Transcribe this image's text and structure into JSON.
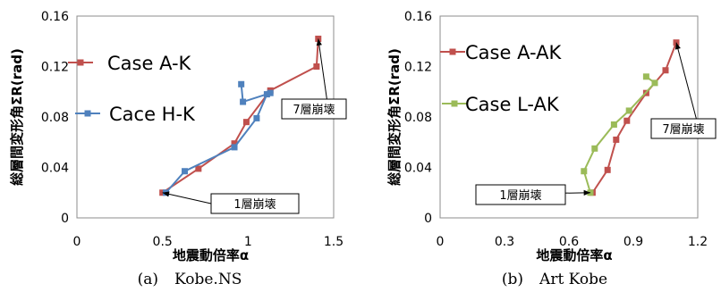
{
  "chart_data": [
    {
      "type": "line",
      "caption_label": "(a)",
      "caption_text": "Kobe.NS",
      "xlabel": "地震動倍率α",
      "ylabel": "総層間変形角ΣR(rad)",
      "xlim": [
        0,
        1.5
      ],
      "ylim": [
        0,
        0.16
      ],
      "x_ticks": [
        "0",
        "0.5",
        "1",
        "1.5"
      ],
      "x_tick_values": [
        0,
        0.5,
        1,
        1.5
      ],
      "y_ticks": [
        "0",
        "0.04",
        "0.08",
        "0.12",
        "0.16"
      ],
      "y_tick_values": [
        0,
        0.04,
        0.08,
        0.12,
        0.16
      ],
      "grid": false,
      "legend_position": "left",
      "series": [
        {
          "name": "Case A-K",
          "color": "#c0504d",
          "marker": "square",
          "points": [
            [
              0.5,
              0.02
            ],
            [
              0.71,
              0.039
            ],
            [
              0.92,
              0.059
            ],
            [
              0.99,
              0.076
            ],
            [
              1.13,
              0.101
            ],
            [
              1.4,
              0.12
            ],
            [
              1.41,
              0.142
            ]
          ]
        },
        {
          "name": "Cace H-K",
          "color": "#4f81bd",
          "marker": "square",
          "points": [
            [
              0.52,
              0.02
            ],
            [
              0.63,
              0.037
            ],
            [
              0.92,
              0.056
            ],
            [
              1.05,
              0.079
            ],
            [
              1.11,
              0.098
            ],
            [
              1.13,
              0.099
            ],
            [
              0.97,
              0.092
            ],
            [
              0.96,
              0.106
            ]
          ]
        }
      ],
      "annotations": [
        {
          "text": "1層崩壊",
          "point": [
            0.5,
            0.02
          ]
        },
        {
          "text": "7層崩壊",
          "point": [
            1.41,
            0.142
          ]
        }
      ]
    },
    {
      "type": "line",
      "caption_label": "(b)",
      "caption_text": "Art Kobe",
      "xlabel": "地震動倍率α",
      "ylabel": "総層間変形角ΣR(rad)",
      "xlim": [
        0,
        1.2
      ],
      "ylim": [
        0,
        0.16
      ],
      "x_ticks": [
        "0",
        "0.3",
        "0.6",
        "0.9",
        "1.2"
      ],
      "x_tick_values": [
        0,
        0.3,
        0.6,
        0.9,
        1.2
      ],
      "y_ticks": [
        "0",
        "0.04",
        "0.08",
        "0.12",
        "0.16"
      ],
      "y_tick_values": [
        0,
        0.04,
        0.08,
        0.12,
        0.16
      ],
      "grid": false,
      "legend_position": "left",
      "series": [
        {
          "name": "Case A-AK",
          "color": "#c0504d",
          "marker": "square",
          "points": [
            [
              0.71,
              0.02
            ],
            [
              0.78,
              0.038
            ],
            [
              0.82,
              0.062
            ],
            [
              0.87,
              0.077
            ],
            [
              0.96,
              0.099
            ],
            [
              1.05,
              0.117
            ],
            [
              1.1,
              0.139
            ]
          ]
        },
        {
          "name": "Case L-AK",
          "color": "#9bbb59",
          "marker": "square",
          "points": [
            [
              0.7,
              0.02
            ],
            [
              0.67,
              0.037
            ],
            [
              0.72,
              0.055
            ],
            [
              0.81,
              0.074
            ],
            [
              0.88,
              0.085
            ],
            [
              1.0,
              0.107
            ],
            [
              0.96,
              0.112
            ]
          ]
        }
      ],
      "annotations": [
        {
          "text": "1層崩壊",
          "point": [
            0.7,
            0.02
          ]
        },
        {
          "text": "7層崩壊",
          "point": [
            1.1,
            0.139
          ]
        }
      ]
    }
  ]
}
